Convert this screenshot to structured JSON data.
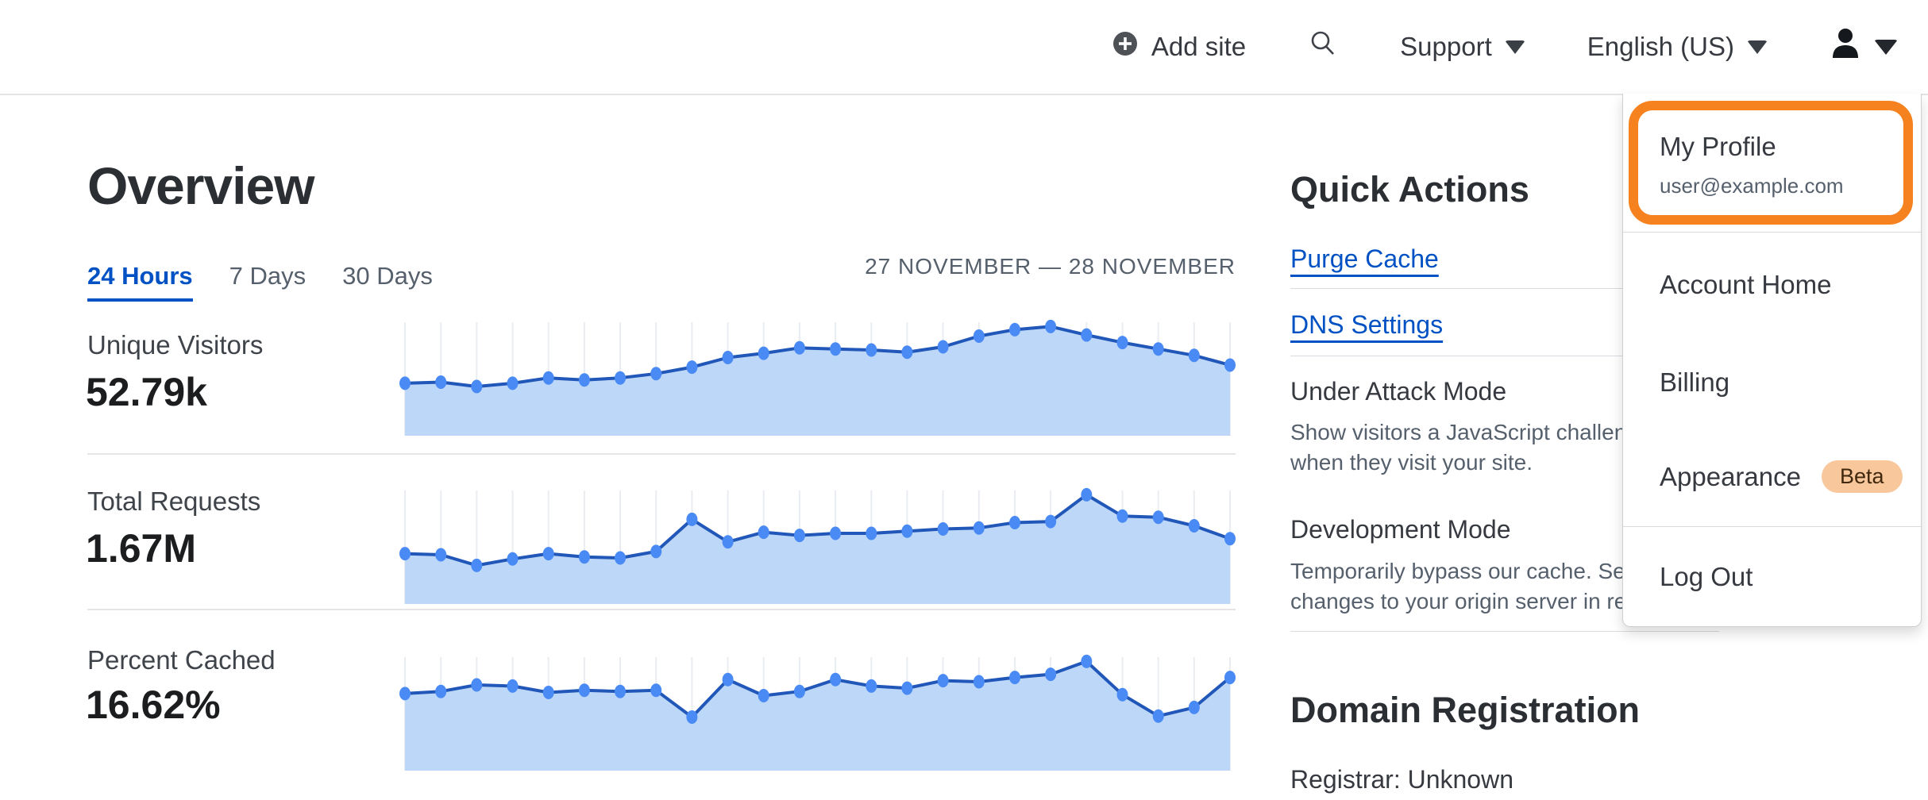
{
  "nav": {
    "add_site": "Add site",
    "support": "Support",
    "language": "English (US)"
  },
  "overview": {
    "title": "Overview",
    "tabs": [
      {
        "label": "24 Hours",
        "active": true
      },
      {
        "label": "7 Days",
        "active": false
      },
      {
        "label": "30 Days",
        "active": false
      }
    ],
    "date_range": "27 NOVEMBER — 28 NOVEMBER",
    "metrics": [
      {
        "label": "Unique Visitors",
        "value": "52.79k",
        "series": [
          0.46,
          0.47,
          0.43,
          0.46,
          0.51,
          0.49,
          0.51,
          0.55,
          0.61,
          0.7,
          0.74,
          0.79,
          0.78,
          0.77,
          0.75,
          0.8,
          0.9,
          0.96,
          0.99,
          0.91,
          0.84,
          0.78,
          0.72,
          0.63
        ]
      },
      {
        "label": "Total Requests",
        "value": "1.67M",
        "series": [
          0.44,
          0.43,
          0.33,
          0.39,
          0.44,
          0.41,
          0.4,
          0.46,
          0.76,
          0.55,
          0.64,
          0.61,
          0.63,
          0.63,
          0.65,
          0.67,
          0.68,
          0.73,
          0.74,
          0.99,
          0.79,
          0.78,
          0.7,
          0.58
        ]
      },
      {
        "label": "Percent Cached",
        "value": "16.62%",
        "series": [
          0.69,
          0.71,
          0.77,
          0.76,
          0.7,
          0.72,
          0.71,
          0.72,
          0.47,
          0.82,
          0.67,
          0.71,
          0.82,
          0.76,
          0.74,
          0.81,
          0.8,
          0.84,
          0.87,
          0.99,
          0.68,
          0.48,
          0.56,
          0.84
        ]
      }
    ]
  },
  "quick_actions": {
    "title": "Quick Actions",
    "purge_cache": "Purge Cache",
    "dns_settings": "DNS Settings",
    "under_attack_mode": {
      "title": "Under Attack Mode",
      "description_lines": [
        "Show visitors a JavaScript challenge",
        "when they visit your site."
      ]
    },
    "development_mode": {
      "title": "Development Mode",
      "description_lines": [
        "Temporarily bypass our cache. See",
        "changes to your origin server in realtime."
      ]
    }
  },
  "domain_registration": {
    "title": "Domain Registration",
    "registrar": "Registrar: Unknown"
  },
  "profile_menu": {
    "my_profile": "My Profile",
    "email": "user@example.com",
    "account_home": "Account Home",
    "billing": "Billing",
    "appearance": "Appearance",
    "beta_badge": "Beta",
    "log_out": "Log Out"
  },
  "colors": {
    "accent_orange": "#f6821f",
    "link_blue": "#0051c3",
    "chart_fill": "#bdd7f8",
    "chart_line": "#2057b8",
    "chart_dot": "#4a8af4",
    "chart_grid": "#e9ecf1",
    "beta_bg": "#f8c89c"
  }
}
